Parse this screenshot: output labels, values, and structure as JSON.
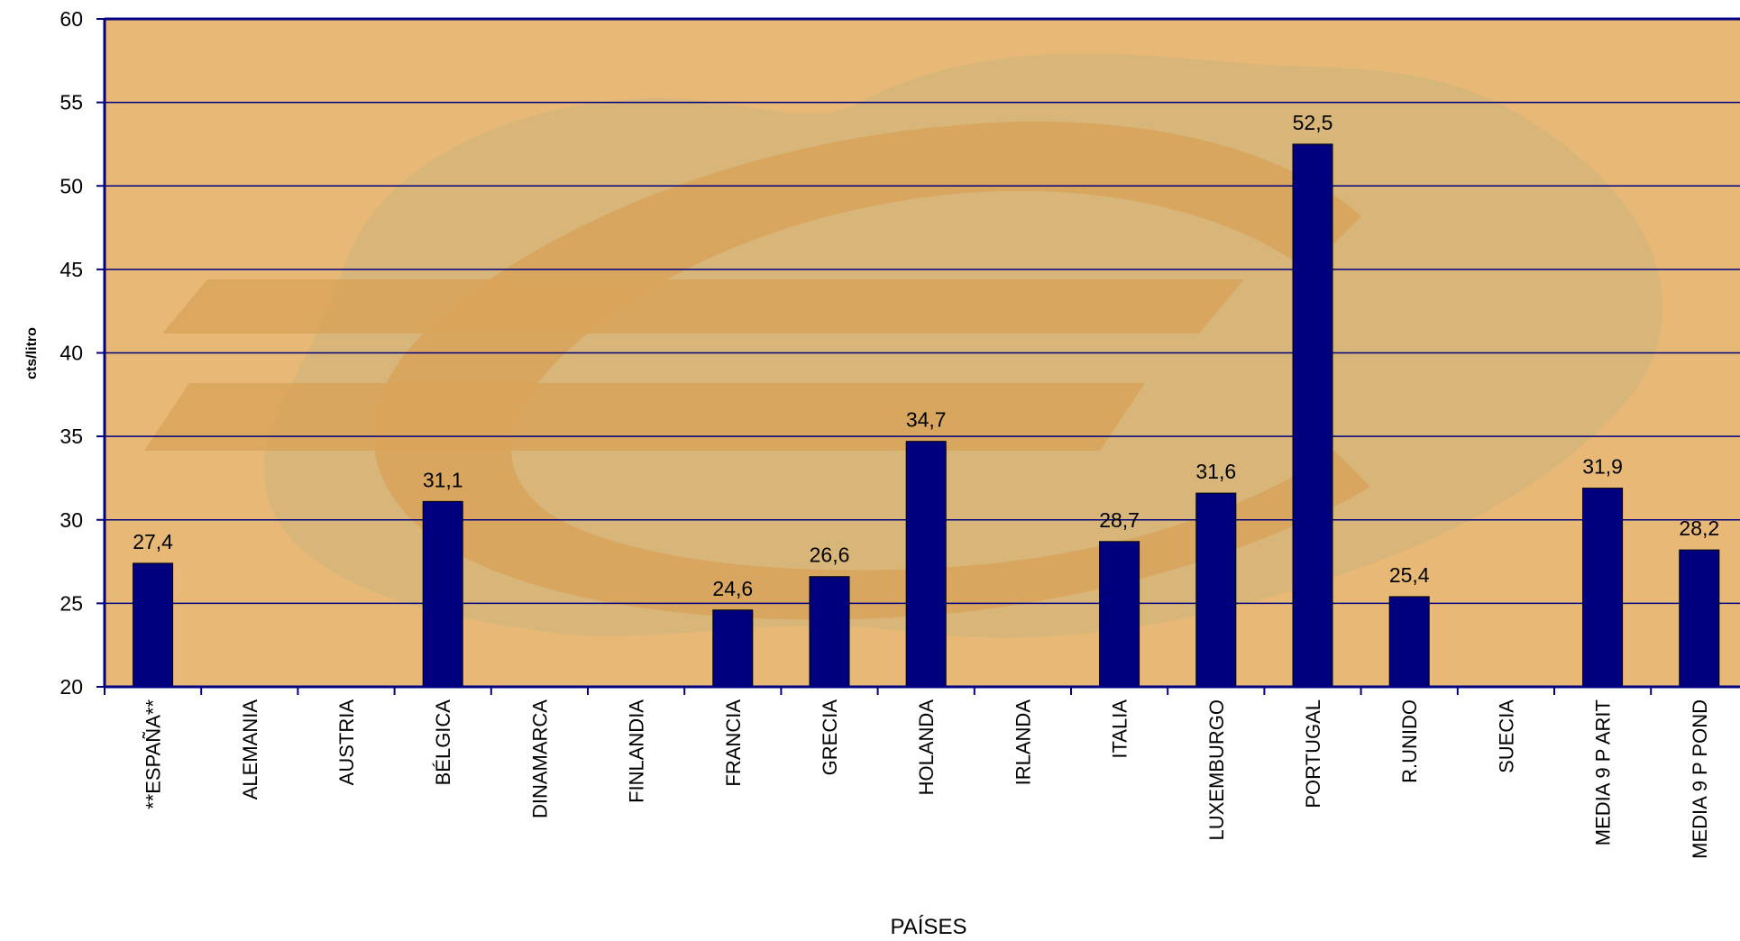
{
  "chart_data": {
    "type": "bar",
    "xlabel": "PAÍSES",
    "ylabel": "cts/litro",
    "ylim": [
      20,
      60
    ],
    "yticks": [
      20,
      25,
      30,
      35,
      40,
      45,
      50,
      55,
      60
    ],
    "grid": true,
    "categories": [
      "**ESPAÑA**",
      "ALEMANIA",
      "AUSTRIA",
      "BÉLGICA",
      "DINAMARCA",
      "FINLANDIA",
      "FRANCIA",
      "GRECIA",
      "HOLANDA",
      "IRLANDA",
      "ITALIA",
      "LUXEMBURGO",
      "PORTUGAL",
      "R.UNIDO",
      "SUECIA",
      "MEDIA 9 P ARIT",
      "MEDIA 9 P POND"
    ],
    "values": [
      27.4,
      null,
      null,
      31.1,
      null,
      null,
      24.6,
      26.6,
      34.7,
      null,
      28.7,
      31.6,
      52.5,
      25.4,
      null,
      31.9,
      28.2
    ],
    "data_labels": [
      "27,4",
      "",
      "",
      "31,1",
      "",
      "",
      "24,6",
      "26,6",
      "34,7",
      "",
      "28,7",
      "31,6",
      "52,5",
      "25,4",
      "",
      "31,9",
      "28,2"
    ],
    "colors": {
      "bar": "#00007f",
      "bar_stroke": "#000000",
      "plot_background": "#e8b877",
      "gridline": "#00007f",
      "axis": "#000080",
      "watermark": "#d9a35a",
      "watermark_land": "#cbb57c"
    }
  }
}
